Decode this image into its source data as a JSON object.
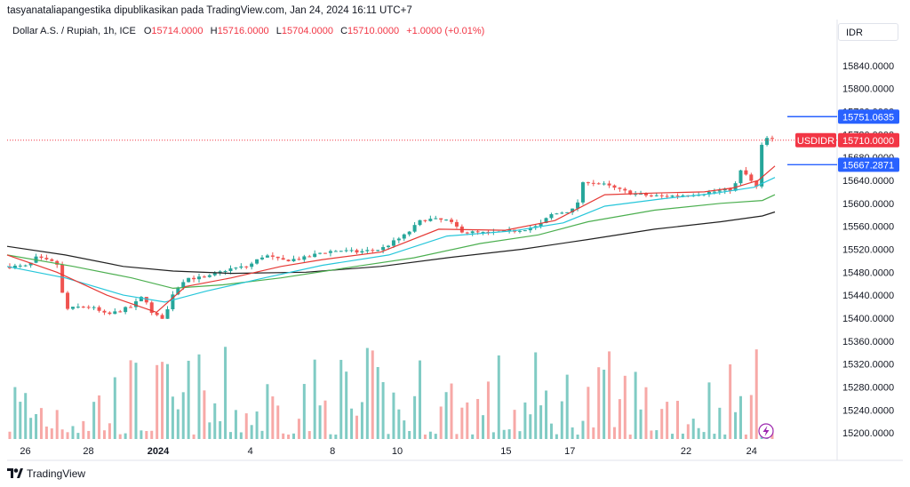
{
  "header": {
    "credit": "tasyanataliapangestika dipublikasikan pada TradingView.com, Jan 24, 2024 16:11 UTC+7"
  },
  "legend": {
    "symbol": "Dollar A.S. / Rupiah, 1h, ICE",
    "open_label": "O",
    "open": "15714.0000",
    "high_label": "H",
    "high": "15716.0000",
    "low_label": "L",
    "low": "15704.0000",
    "close_label": "C",
    "close": "15710.0000",
    "change": "+1.0000 (+0.01%)"
  },
  "currency": "IDR",
  "footer": {
    "brand": "TradingView"
  },
  "colors": {
    "up": "#26a69a",
    "down": "#ef5350",
    "vol_up": "#80cbc4",
    "vol_down": "#f7a9a7",
    "ema_red": "#e53935",
    "ema_cyan": "#26c6da",
    "ema_green": "#4caf50",
    "ema_black": "#212121",
    "tag_blue": "#2962ff",
    "tag_red": "#f23645"
  },
  "chart_data": {
    "type": "candlestick",
    "ylim": [
      15180,
      15880
    ],
    "y_ticks": [
      "15840.0000",
      "15800.0000",
      "15760.0000",
      "15720.0000",
      "15680.0000",
      "15640.0000",
      "15600.0000",
      "15560.0000",
      "15520.0000",
      "15480.0000",
      "15440.0000",
      "15400.0000",
      "15360.0000",
      "15320.0000",
      "15280.0000",
      "15240.0000",
      "15200.0000"
    ],
    "x_ticks": [
      {
        "label": "26",
        "t": 0.022
      },
      {
        "label": "28",
        "t": 0.098
      },
      {
        "label": "2024",
        "t": 0.182
      },
      {
        "label": "4",
        "t": 0.293
      },
      {
        "label": "8",
        "t": 0.392
      },
      {
        "label": "10",
        "t": 0.47
      },
      {
        "label": "15",
        "t": 0.601
      },
      {
        "label": "17",
        "t": 0.678
      },
      {
        "label": "22",
        "t": 0.818
      },
      {
        "label": "24",
        "t": 0.897
      }
    ],
    "price_tags": [
      {
        "label": "",
        "value": "15751.0635",
        "price": 15751.06,
        "color": "blue"
      },
      {
        "label": "USDIDR",
        "value": "15710.0000",
        "price": 15710,
        "color": "red"
      },
      {
        "label": "",
        "value": "15667.2871",
        "price": 15667.29,
        "color": "blue"
      }
    ],
    "close_path": [
      [
        0,
        15490
      ],
      [
        0.025,
        15490
      ],
      [
        0.035,
        15505
      ],
      [
        0.06,
        15495
      ],
      [
        0.07,
        15415
      ],
      [
        0.09,
        15420
      ],
      [
        0.1,
        15420
      ],
      [
        0.12,
        15405
      ],
      [
        0.15,
        15420
      ],
      [
        0.165,
        15440
      ],
      [
        0.175,
        15405
      ],
      [
        0.19,
        15400
      ],
      [
        0.2,
        15445
      ],
      [
        0.215,
        15470
      ],
      [
        0.24,
        15470
      ],
      [
        0.265,
        15485
      ],
      [
        0.29,
        15490
      ],
      [
        0.31,
        15510
      ],
      [
        0.33,
        15500
      ],
      [
        0.36,
        15505
      ],
      [
        0.38,
        15515
      ],
      [
        0.4,
        15518
      ],
      [
        0.42,
        15515
      ],
      [
        0.45,
        15520
      ],
      [
        0.48,
        15545
      ],
      [
        0.5,
        15572
      ],
      [
        0.51,
        15572
      ],
      [
        0.53,
        15570
      ],
      [
        0.55,
        15550
      ],
      [
        0.58,
        15548
      ],
      [
        0.61,
        15552
      ],
      [
        0.64,
        15560
      ],
      [
        0.655,
        15580
      ],
      [
        0.67,
        15585
      ],
      [
        0.685,
        15590
      ],
      [
        0.695,
        15640
      ],
      [
        0.72,
        15632
      ],
      [
        0.74,
        15622
      ],
      [
        0.76,
        15615
      ],
      [
        0.79,
        15612
      ],
      [
        0.81,
        15614
      ],
      [
        0.84,
        15618
      ],
      [
        0.86,
        15622
      ],
      [
        0.875,
        15625
      ],
      [
        0.885,
        15660
      ],
      [
        0.895,
        15640
      ],
      [
        0.905,
        15625
      ],
      [
        0.91,
        15715
      ],
      [
        0.925,
        15710
      ]
    ],
    "ema_fast": [
      [
        0,
        15510
      ],
      [
        0.06,
        15480
      ],
      [
        0.12,
        15440
      ],
      [
        0.18,
        15410
      ],
      [
        0.215,
        15455
      ],
      [
        0.27,
        15470
      ],
      [
        0.33,
        15490
      ],
      [
        0.38,
        15502
      ],
      [
        0.45,
        15515
      ],
      [
        0.52,
        15555
      ],
      [
        0.6,
        15553
      ],
      [
        0.66,
        15570
      ],
      [
        0.72,
        15615
      ],
      [
        0.78,
        15618
      ],
      [
        0.84,
        15620
      ],
      [
        0.875,
        15627
      ],
      [
        0.905,
        15640
      ],
      [
        0.925,
        15665
      ]
    ],
    "ema_mid": [
      [
        0,
        15490
      ],
      [
        0.07,
        15470
      ],
      [
        0.14,
        15440
      ],
      [
        0.19,
        15428
      ],
      [
        0.24,
        15447
      ],
      [
        0.31,
        15470
      ],
      [
        0.38,
        15492
      ],
      [
        0.46,
        15510
      ],
      [
        0.53,
        15543
      ],
      [
        0.61,
        15552
      ],
      [
        0.67,
        15566
      ],
      [
        0.72,
        15595
      ],
      [
        0.79,
        15608
      ],
      [
        0.85,
        15617
      ],
      [
        0.9,
        15628
      ],
      [
        0.925,
        15645
      ]
    ],
    "ema_slow": [
      [
        0,
        15510
      ],
      [
        0.08,
        15490
      ],
      [
        0.15,
        15470
      ],
      [
        0.2,
        15452
      ],
      [
        0.26,
        15458
      ],
      [
        0.33,
        15470
      ],
      [
        0.42,
        15490
      ],
      [
        0.49,
        15505
      ],
      [
        0.57,
        15530
      ],
      [
        0.64,
        15545
      ],
      [
        0.7,
        15568
      ],
      [
        0.78,
        15588
      ],
      [
        0.86,
        15600
      ],
      [
        0.91,
        15605
      ],
      [
        0.925,
        15615
      ]
    ],
    "ema_trend": [
      [
        0,
        15525
      ],
      [
        0.07,
        15510
      ],
      [
        0.14,
        15490
      ],
      [
        0.2,
        15482
      ],
      [
        0.27,
        15478
      ],
      [
        0.36,
        15480
      ],
      [
        0.45,
        15490
      ],
      [
        0.53,
        15505
      ],
      [
        0.62,
        15520
      ],
      [
        0.7,
        15537
      ],
      [
        0.78,
        15555
      ],
      [
        0.86,
        15568
      ],
      [
        0.91,
        15578
      ],
      [
        0.925,
        15585
      ]
    ]
  }
}
